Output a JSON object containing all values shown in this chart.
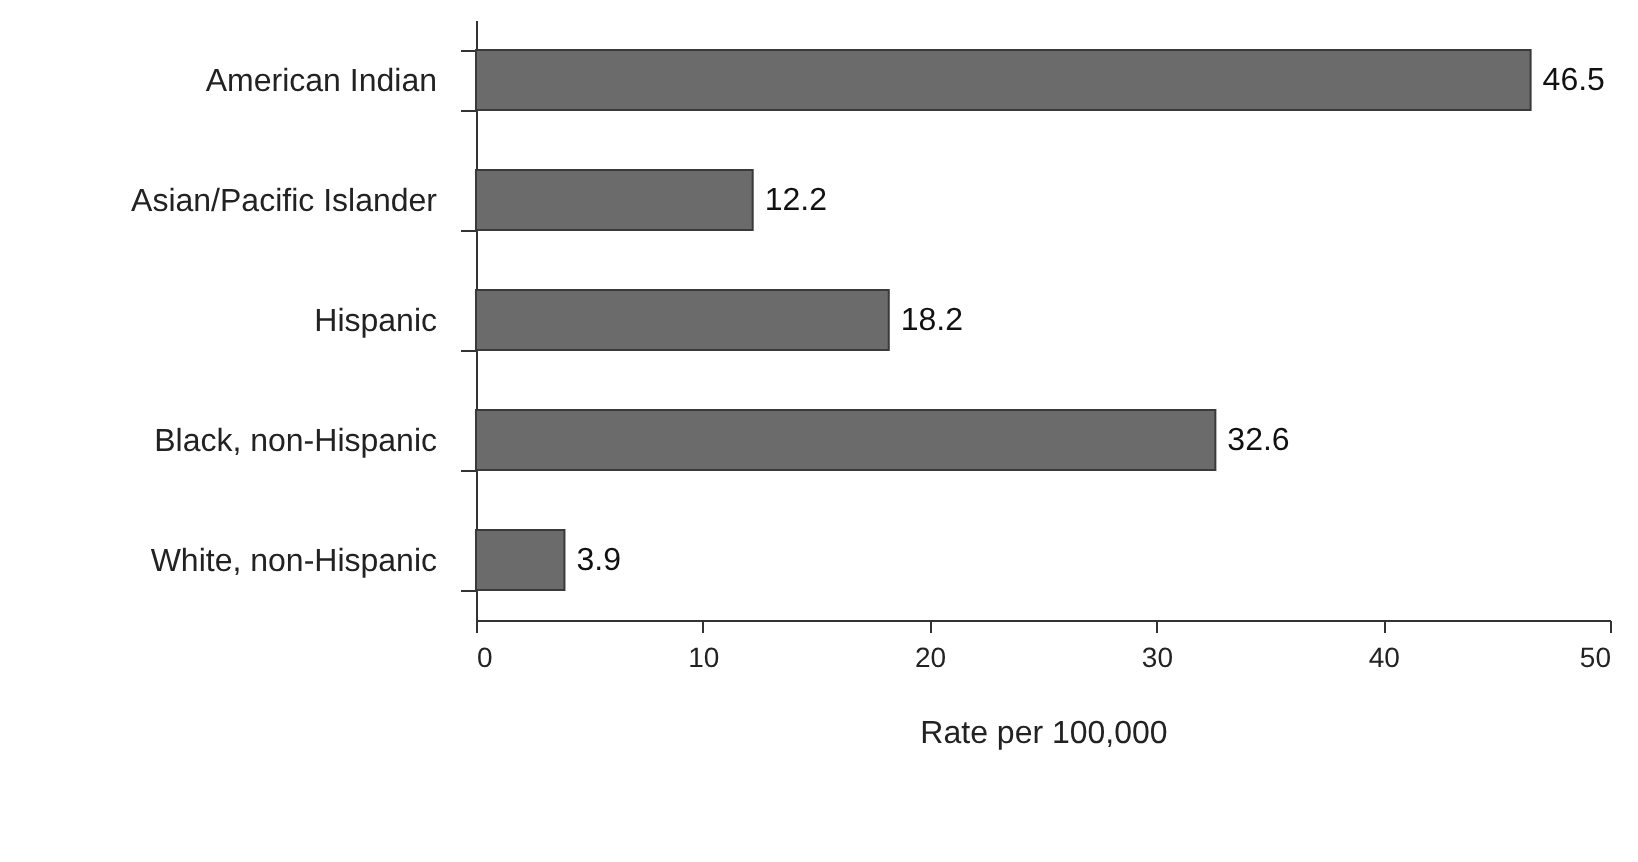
{
  "chart_data": {
    "type": "bar",
    "orientation": "horizontal",
    "xlabel": "Rate per 100,000",
    "categories": [
      "American Indian",
      "Asian/Pacific Islander",
      "Hispanic",
      "Black, non-Hispanic",
      "White, non-Hispanic"
    ],
    "values": [
      46.5,
      12.2,
      18.2,
      32.6,
      3.9
    ],
    "color": "#6b6b6b",
    "xlim": [
      0,
      50
    ],
    "xticks": [
      0,
      10,
      20,
      30,
      40,
      50
    ],
    "grid": false,
    "data_labels": true
  }
}
